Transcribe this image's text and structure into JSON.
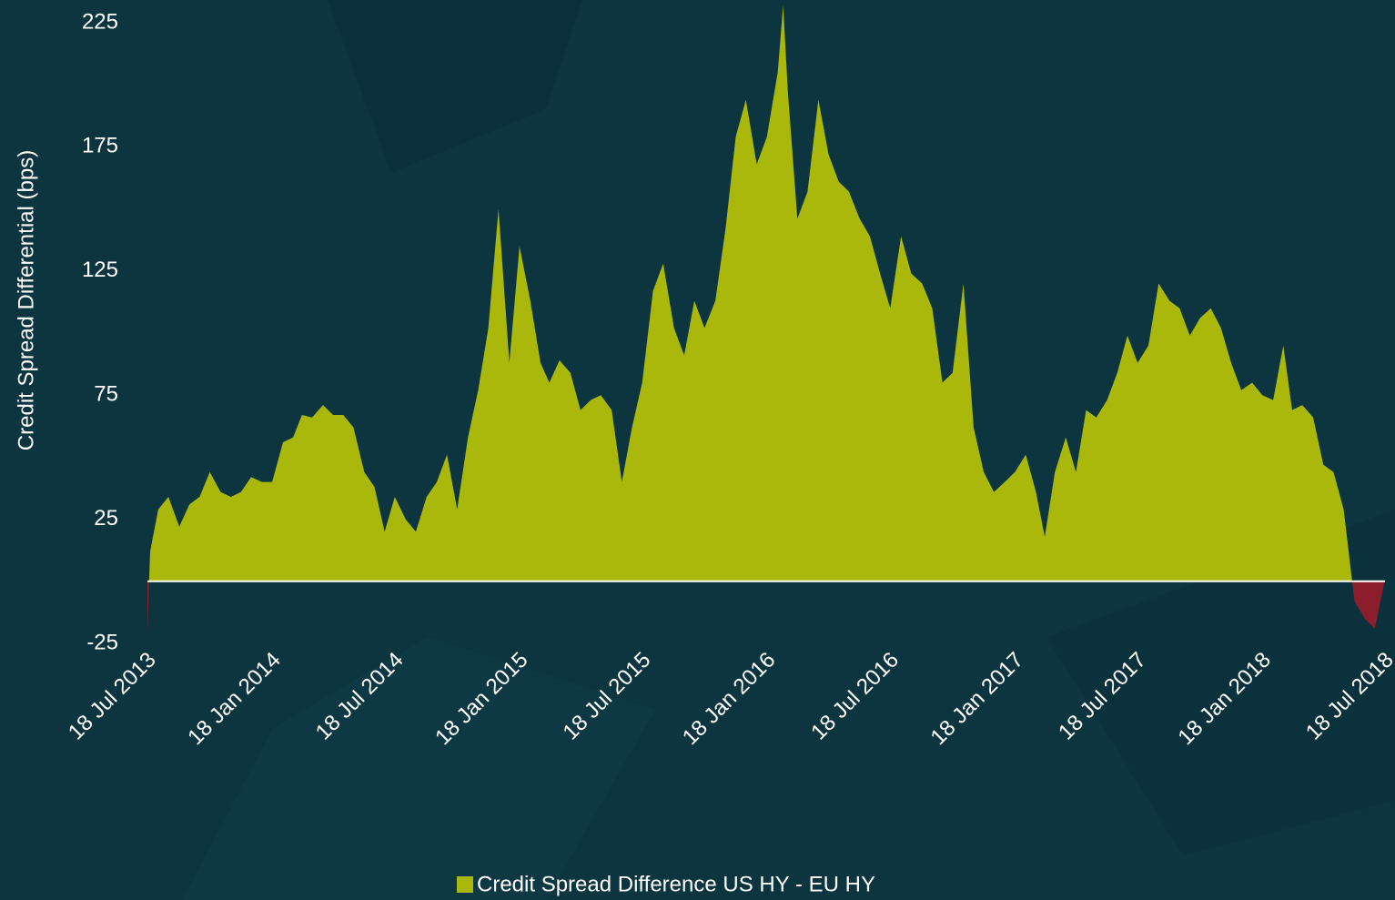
{
  "chart_data": {
    "type": "area",
    "y_label": "Credit Spread Differential (bps)",
    "x": [
      "2013-07-18",
      "2013-07-22",
      "2013-08-03",
      "2013-08-18",
      "2013-09-03",
      "2013-09-18",
      "2013-10-03",
      "2013-10-18",
      "2013-11-03",
      "2013-11-18",
      "2013-12-03",
      "2013-12-18",
      "2014-01-03",
      "2014-01-18",
      "2014-02-03",
      "2014-02-18",
      "2014-03-03",
      "2014-03-18",
      "2014-04-03",
      "2014-04-18",
      "2014-05-03",
      "2014-05-18",
      "2014-06-03",
      "2014-06-18",
      "2014-07-03",
      "2014-07-18",
      "2014-08-03",
      "2014-08-18",
      "2014-09-03",
      "2014-09-18",
      "2014-10-03",
      "2014-10-18",
      "2014-11-03",
      "2014-11-18",
      "2014-12-03",
      "2014-12-18",
      "2015-01-03",
      "2015-01-18",
      "2015-02-03",
      "2015-02-18",
      "2015-03-03",
      "2015-03-18",
      "2015-04-03",
      "2015-04-18",
      "2015-05-03",
      "2015-05-18",
      "2015-06-03",
      "2015-06-18",
      "2015-07-03",
      "2015-07-18",
      "2015-08-03",
      "2015-08-18",
      "2015-09-03",
      "2015-09-18",
      "2015-10-03",
      "2015-10-18",
      "2015-11-03",
      "2015-11-18",
      "2015-12-03",
      "2015-12-18",
      "2016-01-03",
      "2016-01-18",
      "2016-02-03",
      "2016-02-11",
      "2016-02-18",
      "2016-03-03",
      "2016-03-18",
      "2016-04-03",
      "2016-04-18",
      "2016-05-03",
      "2016-05-18",
      "2016-06-03",
      "2016-06-18",
      "2016-07-03",
      "2016-07-18",
      "2016-08-03",
      "2016-08-18",
      "2016-09-03",
      "2016-09-18",
      "2016-10-03",
      "2016-10-18",
      "2016-11-03",
      "2016-11-18",
      "2016-12-03",
      "2016-12-18",
      "2017-01-03",
      "2017-01-18",
      "2017-02-03",
      "2017-02-18",
      "2017-03-03",
      "2017-03-18",
      "2017-04-03",
      "2017-04-18",
      "2017-05-03",
      "2017-05-18",
      "2017-06-03",
      "2017-06-18",
      "2017-07-03",
      "2017-07-18",
      "2017-08-03",
      "2017-08-18",
      "2017-09-03",
      "2017-09-18",
      "2017-10-03",
      "2017-10-18",
      "2017-11-03",
      "2017-11-18",
      "2017-12-03",
      "2017-12-18",
      "2018-01-03",
      "2018-01-18",
      "2018-02-03",
      "2018-02-18",
      "2018-03-03",
      "2018-03-18",
      "2018-04-03",
      "2018-04-18",
      "2018-05-03",
      "2018-05-18",
      "2018-06-03",
      "2018-06-18",
      "2018-07-03",
      "2018-07-18"
    ],
    "series": [
      {
        "name": "Credit Spread Difference US HY - EU HY",
        "color": "#a9b80a",
        "negative_color": "#8b1e2a",
        "values": [
          -20,
          12,
          29,
          34,
          22,
          31,
          34,
          44,
          36,
          34,
          36,
          42,
          40,
          40,
          56,
          58,
          67,
          66,
          71,
          67,
          67,
          62,
          44,
          38,
          20,
          34,
          25,
          20,
          34,
          40,
          51,
          29,
          58,
          77,
          102,
          150,
          88,
          135,
          113,
          88,
          80,
          89,
          84,
          69,
          73,
          75,
          69,
          40,
          62,
          80,
          117,
          128,
          102,
          91,
          113,
          102,
          113,
          142,
          179,
          194,
          168,
          179,
          205,
          232,
          197,
          146,
          157,
          194,
          172,
          161,
          157,
          146,
          139,
          124,
          110,
          139,
          124,
          120,
          110,
          80,
          84,
          120,
          62,
          44,
          36,
          40,
          44,
          51,
          36,
          18,
          44,
          58,
          44,
          69,
          66,
          73,
          84,
          99,
          88,
          95,
          120,
          113,
          110,
          99,
          106,
          110,
          102,
          88,
          77,
          80,
          75,
          73,
          95,
          69,
          71,
          66,
          47,
          44,
          29,
          -8,
          -15,
          -19,
          1
        ]
      }
    ],
    "xlim": [
      "2013-07-18",
      "2018-07-18"
    ],
    "xticks": [
      {
        "value": "2013-07-18",
        "label": "18 Jul 2013"
      },
      {
        "value": "2014-01-18",
        "label": "18 Jan 2014"
      },
      {
        "value": "2014-07-18",
        "label": "18 Jul 2014"
      },
      {
        "value": "2015-01-18",
        "label": "18 Jan 2015"
      },
      {
        "value": "2015-07-18",
        "label": "18 Jul 2015"
      },
      {
        "value": "2016-01-18",
        "label": "18 Jan 2016"
      },
      {
        "value": "2016-07-18",
        "label": "18 Jul 2016"
      },
      {
        "value": "2017-01-18",
        "label": "18 Jan 2017"
      },
      {
        "value": "2017-07-18",
        "label": "18 Jul 2017"
      },
      {
        "value": "2018-01-18",
        "label": "18 Jan 2018"
      },
      {
        "value": "2018-07-18",
        "label": "18 Jul 2018"
      }
    ],
    "ylim": [
      -25,
      235
    ],
    "yticks": [
      -25,
      25,
      75,
      125,
      175,
      225
    ],
    "legend": "bottom"
  }
}
